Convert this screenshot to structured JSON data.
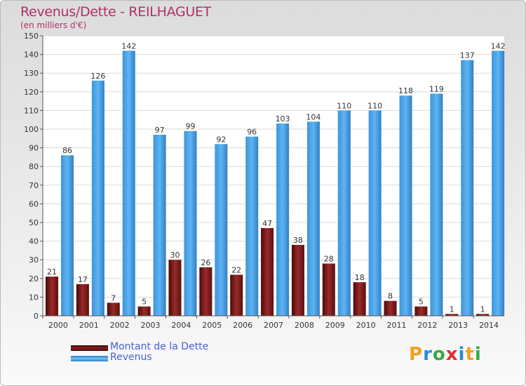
{
  "chart_data": {
    "type": "bar",
    "title": "Revenus/Dette - REILHAGUET",
    "subtitle": "(en milliers d'€)",
    "categories": [
      "2000",
      "2001",
      "2002",
      "2003",
      "2004",
      "2005",
      "2006",
      "2007",
      "2008",
      "2009",
      "2010",
      "2011",
      "2012",
      "2013",
      "2014"
    ],
    "series": [
      {
        "name": "Montant de la Dette",
        "color": "#7a1a1a",
        "values": [
          21,
          17,
          7,
          5,
          30,
          26,
          22,
          47,
          38,
          28,
          18,
          8,
          5,
          1,
          1
        ]
      },
      {
        "name": "Revenus",
        "color": "#3d9be0",
        "values": [
          86,
          126,
          142,
          97,
          99,
          92,
          96,
          103,
          104,
          110,
          110,
          118,
          119,
          137,
          142
        ]
      }
    ],
    "ylim": [
      0,
      150
    ],
    "yticks": [
      0,
      10,
      20,
      30,
      40,
      50,
      60,
      70,
      80,
      90,
      100,
      110,
      120,
      130,
      140,
      150
    ],
    "grid": true,
    "legend_position": "bottom-left"
  },
  "logo": {
    "text": "Proxiti",
    "letters": [
      "P",
      "r",
      "o",
      "x",
      "i",
      "t",
      "i"
    ],
    "colors": [
      "#f0a020",
      "#2a8ad8",
      "#3aa84a",
      "#e03030",
      "#2a8ad8",
      "#f0a020",
      "#3aa84a"
    ]
  }
}
